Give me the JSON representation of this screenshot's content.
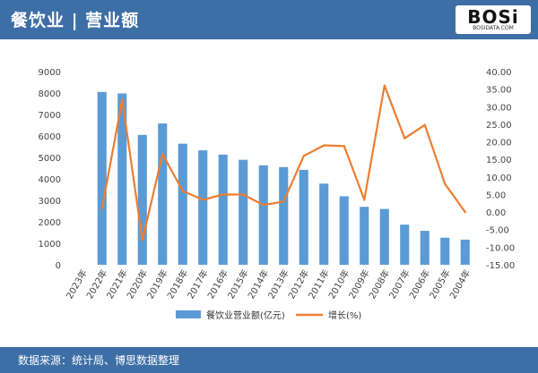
{
  "header": {
    "title": "餐饮业 | 营业额"
  },
  "logo": {
    "text": "BOSi",
    "subtext": "BOSIDATA.COM"
  },
  "footer": {
    "source": "数据来源：统计局、博思数据整理"
  },
  "colors": {
    "header_bg": "#3d6fa6",
    "bar": "#5b9bd5",
    "line": "#ed7d31"
  },
  "chart_data": {
    "type": "bar",
    "categories": [
      "2023年",
      "2022年",
      "2021年",
      "2020年",
      "2019年",
      "2018年",
      "2017年",
      "2016年",
      "2015年",
      "2014年",
      "2013年",
      "2012年",
      "2011年",
      "2010年",
      "2009年",
      "2008年",
      "2007年",
      "2006年",
      "2005年",
      "2004年"
    ],
    "series": [
      {
        "name": "餐饮业营业额(亿元)",
        "type": "bar",
        "axis": "left",
        "values": [
          null,
          8050,
          7980,
          6050,
          6580,
          5640,
          5330,
          5130,
          4890,
          4630,
          4550,
          4420,
          3780,
          3190,
          2700,
          2600,
          1870,
          1580,
          1260,
          1170
        ]
      },
      {
        "name": "增长(%)",
        "type": "line",
        "axis": "right",
        "values": [
          null,
          1.0,
          32.0,
          -8.0,
          16.5,
          6.0,
          3.5,
          5.0,
          5.0,
          2.0,
          3.0,
          16.0,
          19.0,
          18.8,
          3.5,
          36.0,
          21.0,
          24.8,
          8.0,
          0.0
        ]
      }
    ],
    "y_left": {
      "min": 0,
      "max": 9000,
      "step": 1000,
      "ticks": [
        "0",
        "1000",
        "2000",
        "3000",
        "4000",
        "5000",
        "6000",
        "7000",
        "8000",
        "9000"
      ]
    },
    "y_right": {
      "min": -15,
      "max": 40,
      "step": 5,
      "ticks": [
        "-15.00",
        "-10.00",
        "-5.00",
        "0.00",
        "5.00",
        "10.00",
        "15.00",
        "20.00",
        "25.00",
        "30.00",
        "35.00",
        "40.00"
      ]
    },
    "grid": false,
    "legend": "bottom"
  }
}
